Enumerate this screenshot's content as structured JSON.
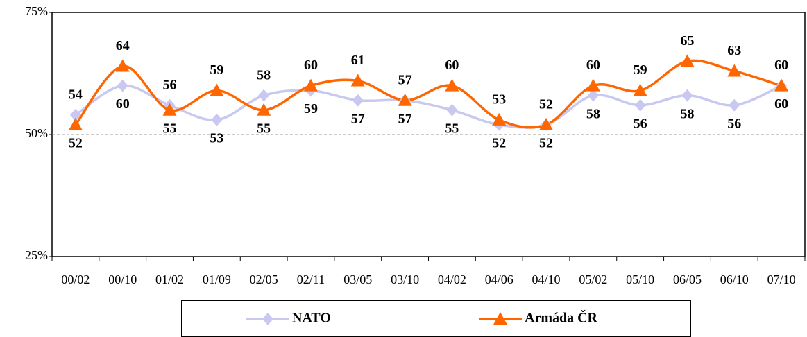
{
  "chart_data": {
    "type": "line",
    "categories": [
      "00/02",
      "00/10",
      "01/02",
      "01/09",
      "02/05",
      "02/11",
      "03/05",
      "03/10",
      "04/02",
      "04/06",
      "04/10",
      "05/02",
      "05/10",
      "06/05",
      "06/10",
      "07/10"
    ],
    "series": [
      {
        "name": "NATO",
        "color": "#c8c8f0",
        "marker": "diamond",
        "values": [
          54,
          60,
          56,
          53,
          58,
          59,
          57,
          57,
          55,
          52,
          52,
          58,
          56,
          58,
          56,
          60
        ]
      },
      {
        "name": "Armáda ČR",
        "color": "#ff6600",
        "marker": "triangle",
        "values": [
          52,
          64,
          55,
          59,
          55,
          60,
          61,
          57,
          60,
          53,
          52,
          60,
          59,
          65,
          63,
          60
        ]
      }
    ],
    "ylim": [
      25,
      75
    ],
    "yticks": [
      {
        "value": 25,
        "label": "25%"
      },
      {
        "value": 50,
        "label": "50%"
      },
      {
        "value": 75,
        "label": "75%"
      }
    ],
    "grid": true,
    "smooth": true,
    "legend": "bottom"
  }
}
